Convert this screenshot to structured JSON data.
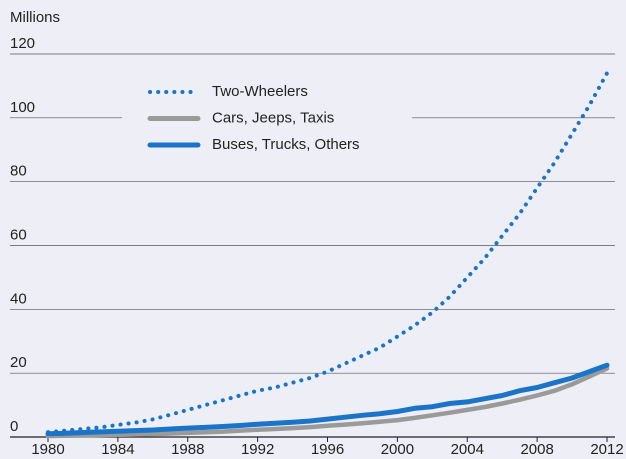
{
  "chart_data": {
    "type": "line",
    "y_label": "Millions",
    "x": [
      1980,
      1981,
      1982,
      1983,
      1984,
      1985,
      1986,
      1987,
      1988,
      1989,
      1990,
      1991,
      1992,
      1993,
      1994,
      1995,
      1996,
      1997,
      1998,
      1999,
      2000,
      2001,
      2002,
      2003,
      2004,
      2005,
      2006,
      2007,
      2008,
      2009,
      2010,
      2011,
      2012
    ],
    "series": [
      {
        "name": "Two-Wheelers",
        "color": "#1a74c9",
        "style": "dotted",
        "values": [
          1.5,
          2,
          2.5,
          3,
          3.8,
          4.5,
          5.5,
          7,
          8.5,
          10,
          11.5,
          13,
          14.5,
          15.5,
          17,
          18.5,
          20.5,
          23,
          25.5,
          28,
          31.5,
          35,
          39,
          44,
          50,
          56,
          63,
          70,
          78,
          86,
          95,
          104,
          114
        ]
      },
      {
        "name": "Cars, Jeeps, Taxis",
        "color": "#9a9a9a",
        "style": "solid",
        "values": [
          0.3,
          0.4,
          0.5,
          0.6,
          0.7,
          0.8,
          0.9,
          1.1,
          1.3,
          1.5,
          1.7,
          2,
          2.3,
          2.5,
          2.8,
          3.1,
          3.5,
          3.9,
          4.3,
          4.8,
          5.3,
          6,
          6.8,
          7.6,
          8.5,
          9.4,
          10.5,
          11.7,
          13,
          14.5,
          16.5,
          19,
          21.5
        ]
      },
      {
        "name": "Buses, Trucks, Others",
        "color": "#1a74c9",
        "style": "solid",
        "values": [
          1,
          1.2,
          1.4,
          1.6,
          1.8,
          2,
          2.2,
          2.5,
          2.8,
          3,
          3.3,
          3.6,
          4,
          4.3,
          4.6,
          5,
          5.6,
          6.2,
          6.8,
          7.3,
          8,
          9,
          9.5,
          10.5,
          11,
          12,
          13,
          14.5,
          15.5,
          17,
          18.5,
          20.5,
          22.5
        ]
      }
    ],
    "xlim": [
      1980,
      2012
    ],
    "xticks": [
      1980,
      1984,
      1988,
      1992,
      1996,
      2000,
      2004,
      2008,
      2012
    ],
    "ylim": [
      0,
      120
    ],
    "yticks": [
      0,
      20,
      40,
      60,
      80,
      100,
      120
    ],
    "grid": true,
    "legend": "top-left"
  }
}
